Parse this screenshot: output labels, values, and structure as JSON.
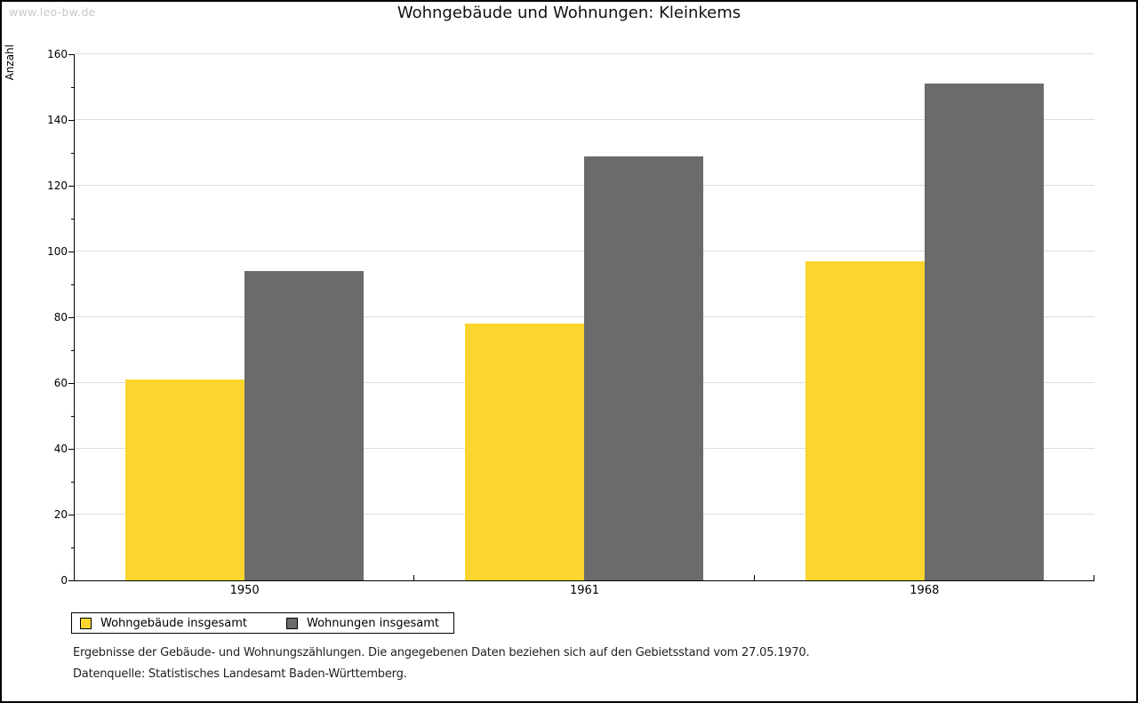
{
  "watermark": "www.leo-bw.de",
  "chart_data": {
    "type": "bar",
    "title": "Wohngebäude und Wohnungen: Kleinkems",
    "categories": [
      "1950",
      "1961",
      "1968"
    ],
    "series": [
      {
        "name": "Wohngebäude insgesamt",
        "color": "#FCD52E",
        "values": [
          61,
          78,
          97
        ]
      },
      {
        "name": "Wohnungen insgesamt",
        "color": "#6B6B6B",
        "values": [
          94,
          129,
          151
        ]
      }
    ],
    "xlabel": "",
    "ylabel": "Anzahl",
    "ylim": [
      0,
      160
    ],
    "ytick_interval": 20,
    "yminortick_interval": 10,
    "grid": true,
    "gridline_color": "#dcdcdc",
    "legend_position": "bottom-left"
  },
  "footnotes": [
    "Ergebnisse der Gebäude- und Wohnungszählungen. Die angegebenen Daten beziehen sich auf den Gebietsstand vom 27.05.1970.",
    "Datenquelle: Statistisches Landesamt Baden-Württemberg."
  ]
}
